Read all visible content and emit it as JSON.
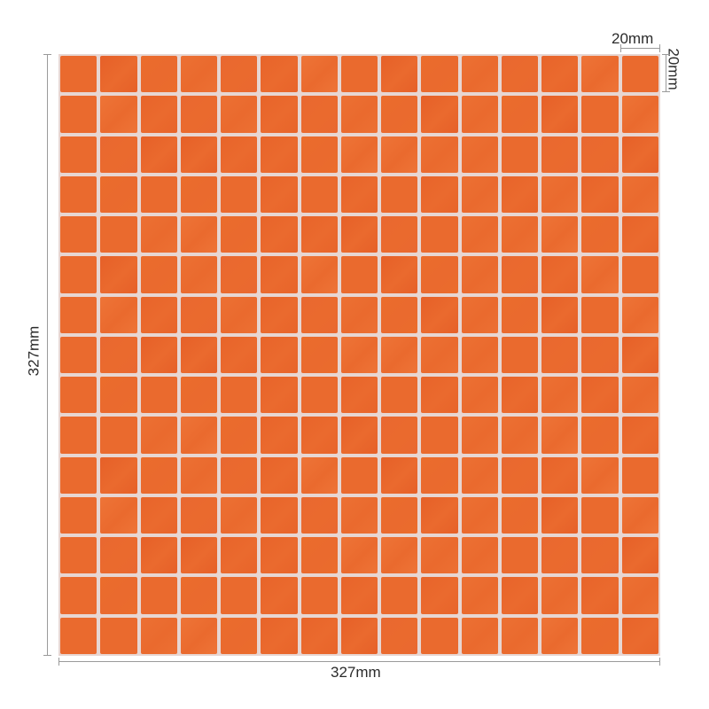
{
  "dimensions": {
    "tile_width": "20mm",
    "tile_height": "20mm",
    "sheet_height": "327mm",
    "sheet_width": "327mm"
  },
  "mosaic": {
    "rows": 15,
    "columns": 15,
    "tile_color": "#ea6a2e",
    "grout_color": "#e7d6d2"
  }
}
